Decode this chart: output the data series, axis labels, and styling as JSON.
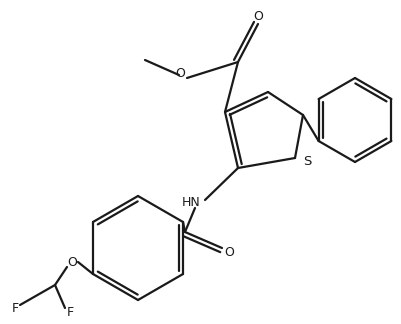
{
  "bg_color": "#ffffff",
  "line_color": "#1a1a1a",
  "line_width": 1.6,
  "dpi": 100,
  "figsize": [
    4.02,
    3.24
  ],
  "xlim": [
    0,
    402
  ],
  "ylim": [
    0,
    324
  ]
}
